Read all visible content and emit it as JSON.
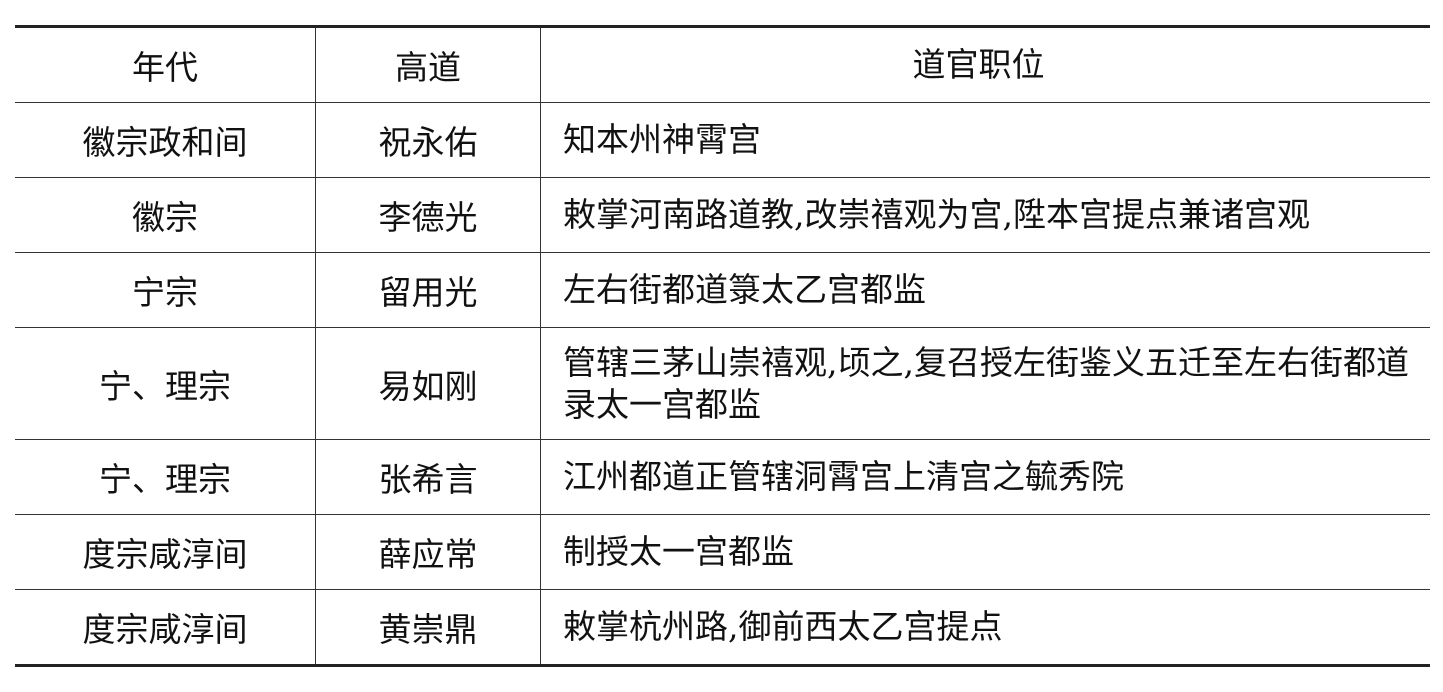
{
  "headers": [
    "年代",
    "高道",
    "道官职位"
  ],
  "rows": [
    {
      "era": "徽宗政和间",
      "priest": "祝永佑",
      "position": "知本州神霄宫"
    },
    {
      "era": "徽宗",
      "priest": "李德光",
      "position": "敕掌河南路道教,改崇禧观为宫,陞本宫提点兼诸宫观"
    },
    {
      "era": "宁宗",
      "priest": "留用光",
      "position": "左右街都道箓太乙宫都监"
    },
    {
      "era": "宁、理宗",
      "priest": "易如刚",
      "position": "管辖三茅山崇禧观,顷之,复召授左街鉴义五迁至左右街都道录太一宫都监"
    },
    {
      "era": "宁、理宗",
      "priest": "张希言",
      "position": "江州都道正管辖洞霄宫上清宫之毓秀院"
    },
    {
      "era": "度宗咸淳间",
      "priest": "薛应常",
      "position": "制授太一宫都监"
    },
    {
      "era": "度宗咸淳间",
      "priest": "黄崇鼎",
      "position": "敕掌杭州路,御前西太乙宫提点"
    }
  ]
}
